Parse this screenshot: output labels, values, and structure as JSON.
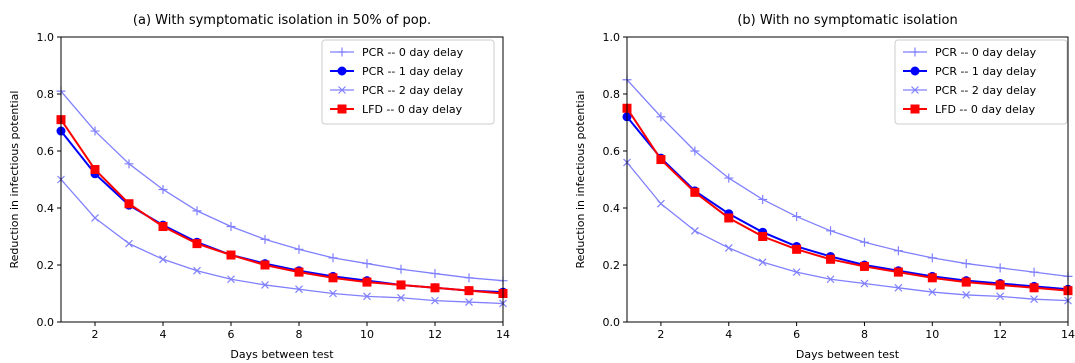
{
  "chart_data": [
    {
      "type": "line",
      "title": "(a) With symptomatic isolation in 50% of pop.",
      "xlabel": "Days between test",
      "ylabel": "Reduction in infectious potential",
      "xlim": [
        1,
        14
      ],
      "ylim": [
        0.0,
        1.0
      ],
      "xticks": [
        "2",
        "4",
        "6",
        "8",
        "10",
        "12",
        "14"
      ],
      "yticks": [
        "0.0",
        "0.2",
        "0.4",
        "0.6",
        "0.8",
        "1.0"
      ],
      "grid": false,
      "legend_position": "top-right",
      "x": [
        1,
        2,
        3,
        4,
        5,
        6,
        7,
        8,
        9,
        10,
        11,
        12,
        13,
        14
      ],
      "series": [
        {
          "name": "PCR -- 0 day delay",
          "color": "#8080ff",
          "marker": "plus",
          "values": [
            0.81,
            0.67,
            0.555,
            0.465,
            0.39,
            0.335,
            0.29,
            0.255,
            0.225,
            0.205,
            0.185,
            0.17,
            0.155,
            0.145
          ]
        },
        {
          "name": "PCR -- 1 day delay",
          "color": "#0000ff",
          "marker": "circle",
          "values": [
            0.67,
            0.52,
            0.41,
            0.34,
            0.28,
            0.235,
            0.205,
            0.18,
            0.16,
            0.145,
            0.13,
            0.12,
            0.11,
            0.105
          ]
        },
        {
          "name": "PCR -- 2 day delay",
          "color": "#8080ff",
          "marker": "x",
          "values": [
            0.5,
            0.365,
            0.275,
            0.22,
            0.18,
            0.15,
            0.13,
            0.115,
            0.1,
            0.09,
            0.085,
            0.075,
            0.07,
            0.065
          ]
        },
        {
          "name": "LFD -- 0 day delay",
          "color": "#ff0000",
          "marker": "square",
          "values": [
            0.71,
            0.535,
            0.415,
            0.335,
            0.275,
            0.235,
            0.2,
            0.175,
            0.155,
            0.14,
            0.13,
            0.12,
            0.11,
            0.1
          ]
        }
      ]
    },
    {
      "type": "line",
      "title": "(b) With no symptomatic isolation",
      "xlabel": "Days between test",
      "ylabel": "Reduction in infectious potential",
      "xlim": [
        1,
        14
      ],
      "ylim": [
        0.0,
        1.0
      ],
      "xticks": [
        "2",
        "4",
        "6",
        "8",
        "10",
        "12",
        "14"
      ],
      "yticks": [
        "0.0",
        "0.2",
        "0.4",
        "0.6",
        "0.8",
        "1.0"
      ],
      "grid": false,
      "legend_position": "top-right",
      "x": [
        1,
        2,
        3,
        4,
        5,
        6,
        7,
        8,
        9,
        10,
        11,
        12,
        13,
        14
      ],
      "series": [
        {
          "name": "PCR -- 0 day delay",
          "color": "#8080ff",
          "marker": "plus",
          "values": [
            0.85,
            0.72,
            0.6,
            0.505,
            0.43,
            0.37,
            0.32,
            0.28,
            0.25,
            0.225,
            0.205,
            0.19,
            0.175,
            0.16
          ]
        },
        {
          "name": "PCR -- 1 day delay",
          "color": "#0000ff",
          "marker": "circle",
          "values": [
            0.72,
            0.575,
            0.46,
            0.38,
            0.315,
            0.265,
            0.23,
            0.2,
            0.18,
            0.16,
            0.145,
            0.135,
            0.125,
            0.115
          ]
        },
        {
          "name": "PCR -- 2 day delay",
          "color": "#8080ff",
          "marker": "x",
          "values": [
            0.56,
            0.415,
            0.32,
            0.26,
            0.21,
            0.175,
            0.15,
            0.135,
            0.12,
            0.105,
            0.095,
            0.09,
            0.08,
            0.075
          ]
        },
        {
          "name": "LFD -- 0 day delay",
          "color": "#ff0000",
          "marker": "square",
          "values": [
            0.75,
            0.57,
            0.455,
            0.365,
            0.3,
            0.255,
            0.22,
            0.195,
            0.175,
            0.155,
            0.14,
            0.13,
            0.12,
            0.11
          ]
        }
      ]
    }
  ]
}
